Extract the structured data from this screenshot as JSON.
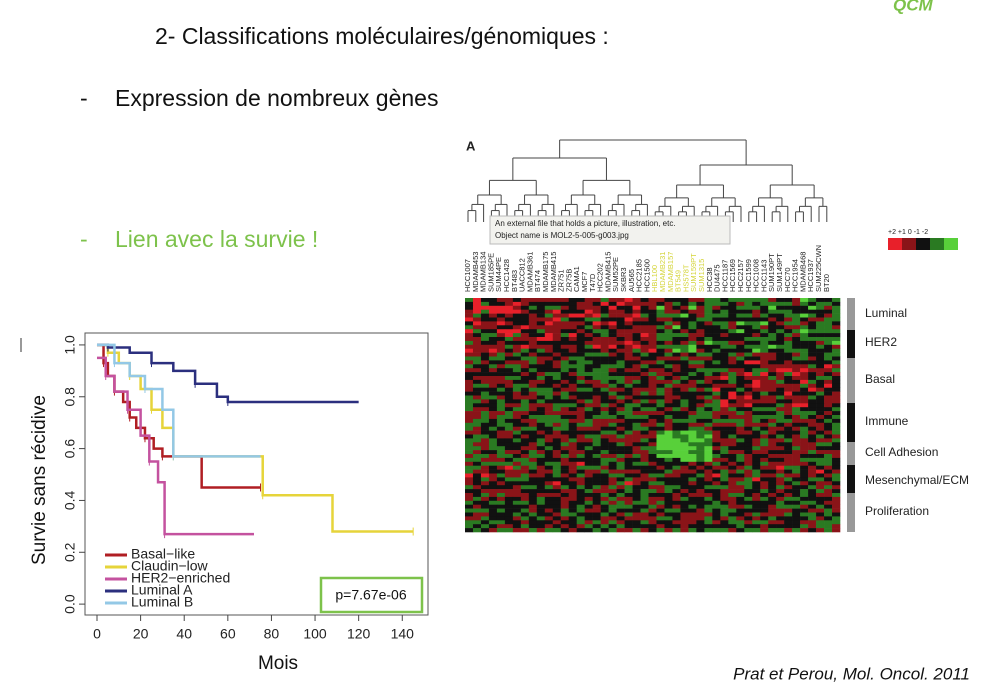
{
  "header": {
    "badge": "QCM",
    "title": "2- Classifications moléculaires/génomiques :"
  },
  "bullets": [
    {
      "marker": "-",
      "text": "Expression de nombreux gènes"
    },
    {
      "marker": "-",
      "text": "Lien avec la survie !"
    }
  ],
  "chart_data": {
    "type": "step",
    "x_label": "Mois",
    "y_label": "Survie sans récidive",
    "annotation": "p=7.67e-06",
    "xlim": [
      -5.5,
      151.8
    ],
    "ylim": [
      -0.042,
      1.046
    ],
    "xticks": [
      0,
      20,
      40,
      60,
      80,
      100,
      120,
      140
    ],
    "yticks": [
      {
        "value": 0,
        "label": "0.0"
      },
      0.2,
      0.4,
      0.6,
      0.8,
      {
        "value": 1,
        "label": "1.0"
      }
    ],
    "series": [
      {
        "name": "Basal−like",
        "color": "#b01e23",
        "x": [
          0,
          3,
          5,
          8,
          12,
          15,
          18,
          22,
          26,
          30,
          48,
          75
        ],
        "values": [
          1,
          0.93,
          0.88,
          0.82,
          0.78,
          0.72,
          0.68,
          0.64,
          0.6,
          0.57,
          0.45,
          0.45
        ]
      },
      {
        "name": "Claudin−low",
        "color": "#e6d43a",
        "x": [
          0,
          5,
          10,
          15,
          20,
          25,
          30,
          35,
          75,
          76,
          108,
          145
        ],
        "values": [
          1,
          0.97,
          0.93,
          0.88,
          0.83,
          0.75,
          0.68,
          0.57,
          0.57,
          0.42,
          0.28,
          0.28
        ]
      },
      {
        "name": "HER2−enriched",
        "color": "#c4529f",
        "x": [
          0,
          4,
          8,
          14,
          20,
          24,
          28,
          31,
          72
        ],
        "values": [
          0.95,
          0.88,
          0.82,
          0.75,
          0.65,
          0.55,
          0.47,
          0.27,
          0.27
        ]
      },
      {
        "name": "Luminal A",
        "color": "#2b2f7e",
        "x": [
          0,
          5,
          15,
          25,
          35,
          45,
          55,
          60,
          120
        ],
        "values": [
          1,
          0.99,
          0.97,
          0.93,
          0.9,
          0.85,
          0.8,
          0.78,
          0.78
        ]
      },
      {
        "name": "Luminal B",
        "color": "#93c8e6",
        "x": [
          0,
          8,
          15,
          22,
          30,
          35,
          75
        ],
        "values": [
          1,
          0.93,
          0.88,
          0.83,
          0.75,
          0.57,
          0.57
        ]
      }
    ]
  },
  "heatmap": {
    "panel_label": "A",
    "tooltip": [
      "An external file that holds a picture, illustration, etc.",
      "Object name is MOL2-5-005-g003.jpg"
    ],
    "scale_label": "+2 +1  0  -1 -2",
    "cell_lines_left": [
      "HCC1007",
      "MDAMB453",
      "MDAMB134",
      "SUM185PE",
      "SUM44PE",
      "HCC1428",
      "BT483",
      "UACC812",
      "MDAMB361",
      "BT474",
      "MDAMB175",
      "MDAMB415",
      "ZR751",
      "ZR75B",
      "CAMA1",
      "MCF7",
      "T47D",
      "HCC202",
      "MDAMB415",
      "SUM52PE",
      "SKBR3",
      "AU565",
      "HCC2185",
      "HCC1500"
    ],
    "cell_lines_highlighted": [
      "HBL100",
      "MDAMB231",
      "MDAMB157",
      "BT549",
      "HS578T",
      "SUM159PT",
      "SUM1315"
    ],
    "cell_lines_right": [
      "HCC38",
      "DU4475",
      "HCC1187",
      "HCC1569",
      "HCC2157",
      "HCC1599",
      "HCC1008",
      "HCC1143",
      "SUM190PT",
      "SUM149PT",
      "HCC70",
      "HCC1954",
      "MDAMB468",
      "HCC1937",
      "SUM225CWN",
      "BT20"
    ],
    "clusters": [
      "Luminal",
      "HER2",
      "Basal",
      "Immune",
      "Cell Adhesion",
      "Mesenchymal/ECM",
      "Proliferation"
    ]
  },
  "citation": "Prat et Perou, Mol. Oncol. 2011"
}
